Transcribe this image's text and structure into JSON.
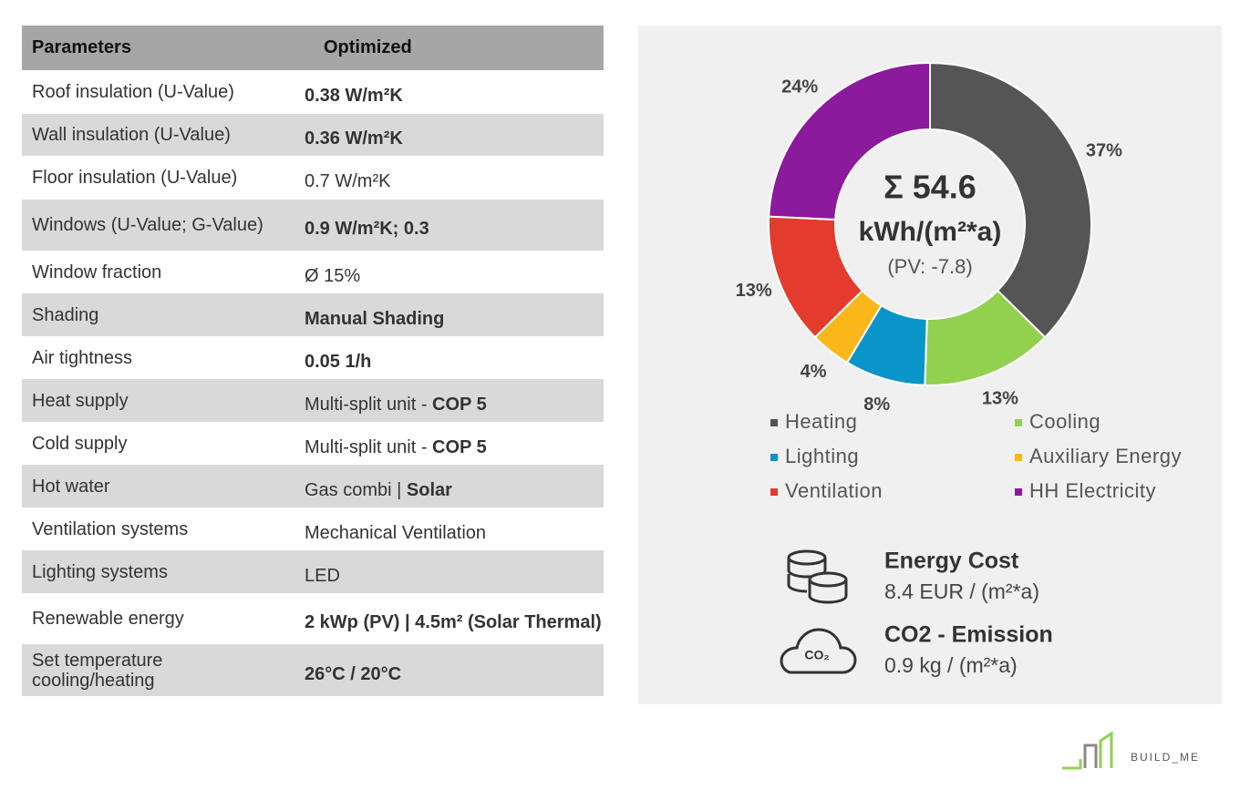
{
  "table": {
    "header": [
      "Parameters",
      "Optimized"
    ],
    "rows": [
      {
        "label": "Roof insulation (U-Value)",
        "value": [
          {
            "text": "0.38 W/m²K",
            "bold": true
          }
        ]
      },
      {
        "label": "Wall insulation (U-Value)",
        "value": [
          {
            "text": "0.36 W/m²K",
            "bold": true
          }
        ]
      },
      {
        "label": "Floor insulation (U-Value)",
        "value": [
          {
            "text": "0.7 W/m²K",
            "bold": false
          }
        ]
      },
      {
        "label": "Windows (U-Value; G-Value)",
        "value": [
          {
            "text": "0.9 W/m²K; 0.3",
            "bold": true
          }
        ]
      },
      {
        "label": "Window fraction",
        "value": [
          {
            "text": "Ø 15%",
            "bold": false
          }
        ]
      },
      {
        "label": "Shading",
        "value": [
          {
            "text": "Manual Shading",
            "bold": true
          }
        ]
      },
      {
        "label": "Air tightness",
        "value": [
          {
            "text": "0.05 1/h",
            "bold": true
          }
        ]
      },
      {
        "label": "Heat supply",
        "value": [
          {
            "text": "Multi-split unit -",
            "bold": false
          },
          {
            "text": "COP 5",
            "bold": true
          }
        ]
      },
      {
        "label": "Cold supply",
        "value": [
          {
            "text": "Multi-split unit -",
            "bold": false
          },
          {
            "text": "COP 5",
            "bold": true
          }
        ]
      },
      {
        "label": "Hot water",
        "value": [
          {
            "text": "Gas combi |",
            "bold": false
          },
          {
            "text": "Solar",
            "bold": true
          }
        ]
      },
      {
        "label": "Ventilation systems",
        "value": [
          {
            "text": "Mechanical Ventilation",
            "bold": false
          }
        ]
      },
      {
        "label": "Lighting systems",
        "value": [
          {
            "text": "LED",
            "bold": false
          }
        ]
      },
      {
        "label": "Renewable energy",
        "value": [
          {
            "text": "2 kWp (PV) | 4.5m² (Solar Thermal)",
            "bold": true
          }
        ]
      },
      {
        "label": "Set temperature cooling/heating",
        "value": [
          {
            "text": "26°C / 20°C",
            "bold": true
          }
        ]
      }
    ]
  },
  "chart_data": {
    "type": "donut",
    "categories": [
      "Heating",
      "Cooling",
      "Lighting",
      "Auxiliary Energy",
      "Ventilation",
      "HH Electricity"
    ],
    "values": [
      37,
      13,
      8,
      4,
      13,
      24
    ],
    "value_labels": [
      "37%",
      "13%",
      "8%",
      "4%",
      "13%",
      "24%"
    ],
    "colors": [
      "#555555",
      "#92d050",
      "#0a95c8",
      "#fbb61a",
      "#e33b2e",
      "#8b1a9c"
    ],
    "annotations": [
      "Σ 54.6",
      "kWh/(m²*a)",
      "(PV: -7.8)"
    ]
  },
  "indicators": [
    {
      "title": "Energy Cost",
      "value": "8.4 EUR / (m²*a)"
    },
    {
      "title": "CO2 - Emission",
      "value": "0.9 kg / (m²*a)"
    }
  ],
  "logo": "BUILD_ME"
}
